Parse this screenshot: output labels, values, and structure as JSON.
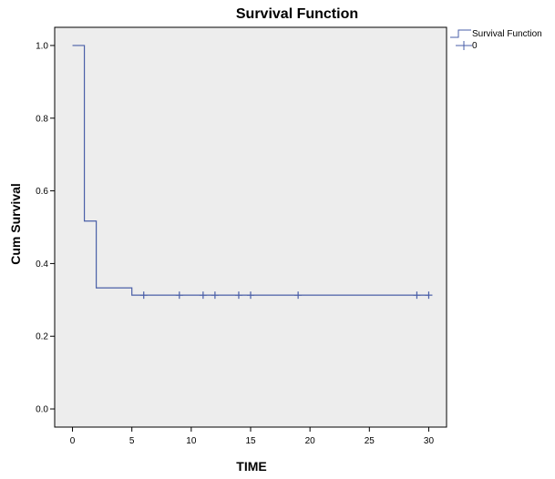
{
  "chart_data": {
    "type": "line",
    "title": "Survival Function",
    "xlabel": "TIME",
    "ylabel": "Cum Survival",
    "xlim": [
      -1.5,
      31.5
    ],
    "ylim": [
      -0.05,
      1.05
    ],
    "x_ticks": [
      0,
      5,
      10,
      15,
      20,
      25,
      30
    ],
    "x_tick_labels": [
      "0",
      "5",
      "10",
      "15",
      "20",
      "25",
      "30"
    ],
    "y_ticks": [
      0.0,
      0.2,
      0.4,
      0.6,
      0.8,
      1.0
    ],
    "y_tick_labels": [
      "0.0",
      "0.2",
      "0.4",
      "0.6",
      "0.8",
      "1.0"
    ],
    "grid": false,
    "legend_position": "top-right",
    "series": [
      {
        "name": "Survival Function",
        "style": "step",
        "x": [
          0,
          1,
          2,
          5,
          30
        ],
        "y": [
          1.0,
          0.517,
          0.333,
          0.313,
          0.313
        ]
      },
      {
        "name": "0",
        "style": "censored-markers",
        "x": [
          6,
          9,
          11,
          12,
          14,
          15,
          19,
          29,
          30
        ],
        "y": [
          0.313,
          0.313,
          0.313,
          0.313,
          0.313,
          0.313,
          0.313,
          0.313,
          0.313
        ]
      }
    ],
    "colors": {
      "line": "#4a5fa8",
      "plot_background": "#ededed",
      "axis": "#000000"
    }
  }
}
